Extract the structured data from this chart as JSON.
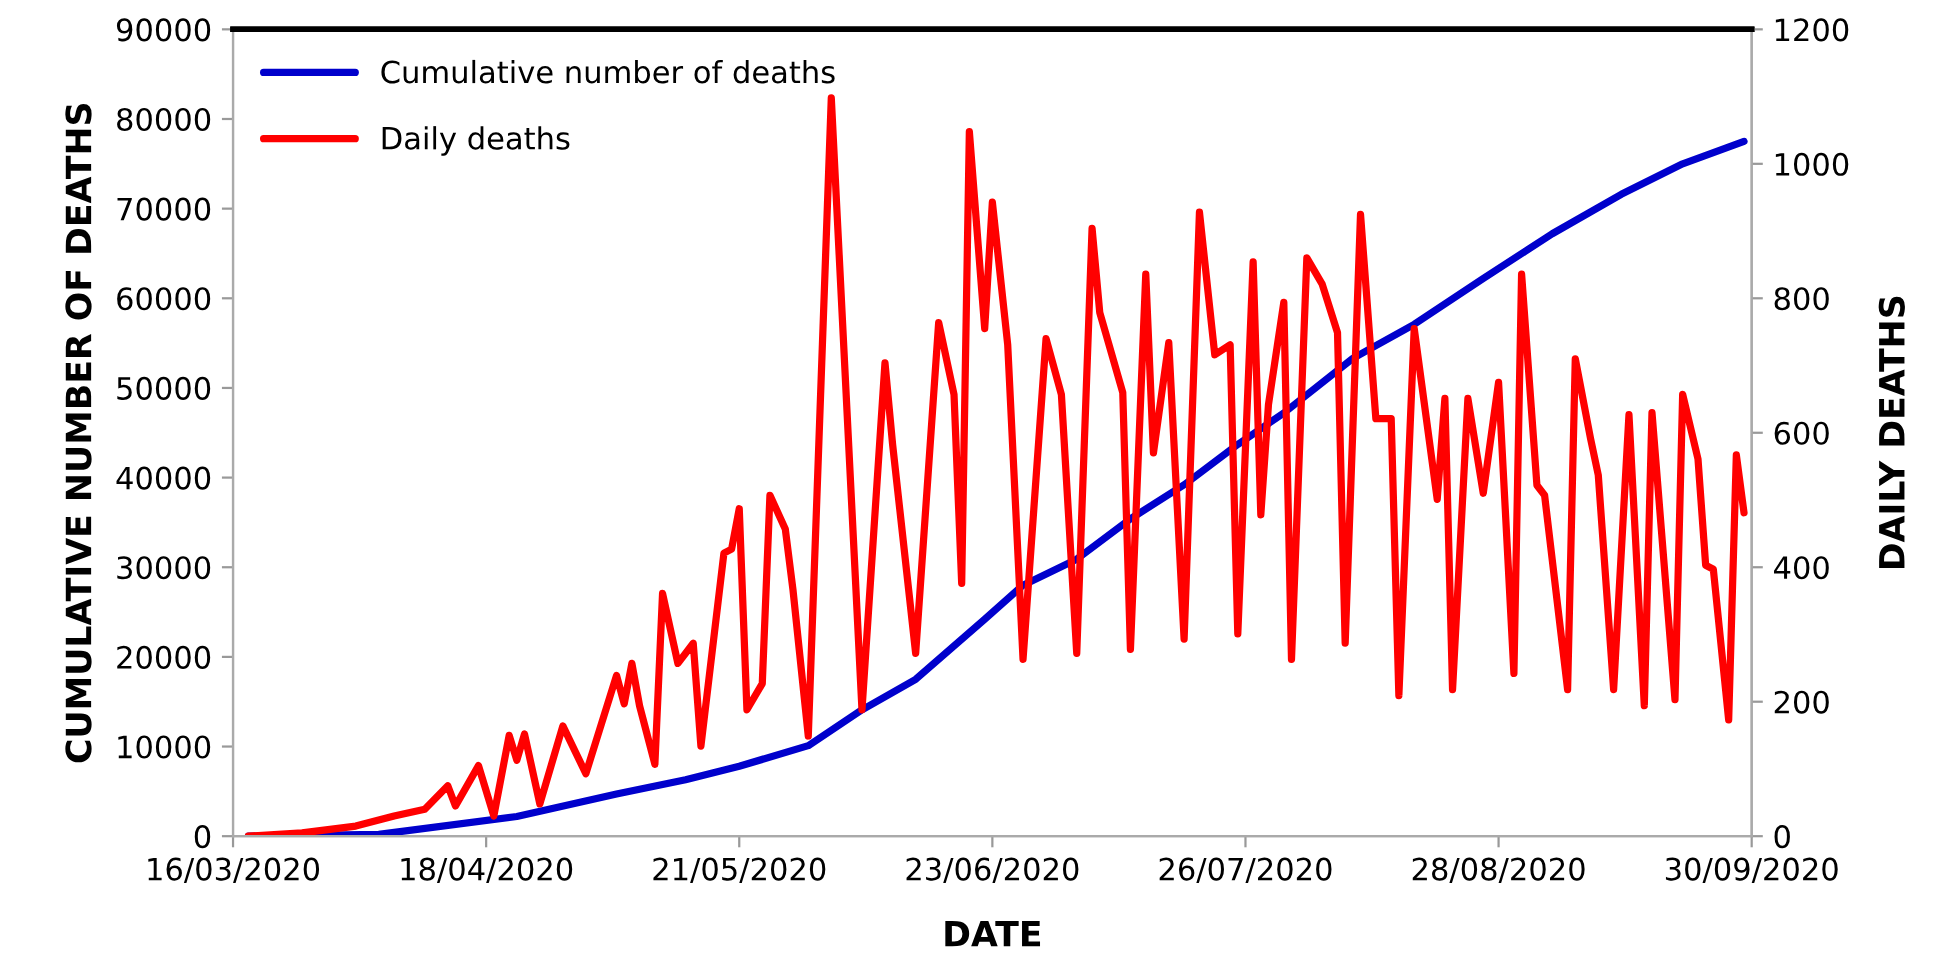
{
  "chart_data": {
    "type": "line",
    "xlabel": "DATE",
    "ylabel": "CUMULATIVE NUMBER OF DEATHS",
    "y2label": "DAILY DEATHS",
    "xlim": [
      "2020-03-16",
      "2020-09-30"
    ],
    "xticks": [
      {
        "value": "2020-03-16",
        "label": "16/03/2020"
      },
      {
        "value": "2020-04-18",
        "label": "18/04/2020"
      },
      {
        "value": "2020-05-21",
        "label": "21/05/2020"
      },
      {
        "value": "2020-06-23",
        "label": "23/06/2020"
      },
      {
        "value": "2020-07-26",
        "label": "26/07/2020"
      },
      {
        "value": "2020-08-28",
        "label": "28/08/2020"
      },
      {
        "value": "2020-09-30",
        "label": "30/09/2020"
      }
    ],
    "ylim": [
      0,
      90000
    ],
    "yticks": [
      0,
      10000,
      20000,
      30000,
      40000,
      50000,
      60000,
      70000,
      80000,
      90000
    ],
    "y2lim": [
      0,
      1200
    ],
    "y2ticks": [
      0,
      200,
      400,
      600,
      800,
      1000,
      1200
    ],
    "legend": "top left",
    "grid": false,
    "line_style": "solid",
    "marker": "none",
    "series": [
      {
        "name": "Cumulative number of deaths",
        "color": "#0000cc",
        "axis": "y",
        "x": [
          "2020-03-18",
          "2020-04-04",
          "2020-04-22",
          "2020-05-05",
          "2020-05-14",
          "2020-05-21",
          "2020-05-30",
          "2020-06-06",
          "2020-06-13",
          "2020-06-22",
          "2020-06-27",
          "2020-07-04",
          "2020-07-11",
          "2020-07-18",
          "2020-07-25",
          "2020-07-31",
          "2020-08-09",
          "2020-08-17",
          "2020-08-26",
          "2020-09-04",
          "2020-09-13",
          "2020-09-21",
          "2020-09-29"
        ],
        "values": [
          0,
          200,
          2200,
          4700,
          6300,
          7800,
          10100,
          14100,
          17500,
          24200,
          28000,
          30900,
          35400,
          39200,
          43700,
          47200,
          53300,
          57100,
          62200,
          67200,
          71600,
          75000,
          77500
        ]
      },
      {
        "name": "Daily deaths",
        "color": "#ff0000",
        "axis": "y2",
        "x": [
          "2020-03-18",
          "2020-03-25",
          "2020-04-01",
          "2020-04-06",
          "2020-04-10",
          "2020-04-13",
          "2020-04-14",
          "2020-04-17",
          "2020-04-19",
          "2020-04-21",
          "2020-04-22",
          "2020-04-23",
          "2020-04-25",
          "2020-04-28",
          "2020-05-01",
          "2020-05-05",
          "2020-05-06",
          "2020-05-07",
          "2020-05-08",
          "2020-05-10",
          "2020-05-11",
          "2020-05-13",
          "2020-05-15",
          "2020-05-16",
          "2020-05-19",
          "2020-05-20",
          "2020-05-21",
          "2020-05-22",
          "2020-05-24",
          "2020-05-25",
          "2020-05-27",
          "2020-05-28",
          "2020-05-30",
          "2020-06-02",
          "2020-06-06",
          "2020-06-09",
          "2020-06-10",
          "2020-06-13",
          "2020-06-16",
          "2020-06-18",
          "2020-06-19",
          "2020-06-20",
          "2020-06-22",
          "2020-06-23",
          "2020-06-25",
          "2020-06-27",
          "2020-06-30",
          "2020-07-02",
          "2020-07-04",
          "2020-07-06",
          "2020-07-07",
          "2020-07-10",
          "2020-07-11",
          "2020-07-13",
          "2020-07-14",
          "2020-07-16",
          "2020-07-18",
          "2020-07-20",
          "2020-07-22",
          "2020-07-24",
          "2020-07-25",
          "2020-07-27",
          "2020-07-28",
          "2020-07-29",
          "2020-07-31",
          "2020-08-01",
          "2020-08-03",
          "2020-08-05",
          "2020-08-07",
          "2020-08-08",
          "2020-08-10",
          "2020-08-12",
          "2020-08-14",
          "2020-08-15",
          "2020-08-17",
          "2020-08-20",
          "2020-08-21",
          "2020-08-22",
          "2020-08-24",
          "2020-08-26",
          "2020-08-28",
          "2020-08-30",
          "2020-08-31",
          "2020-09-02",
          "2020-09-03",
          "2020-09-06",
          "2020-09-07",
          "2020-09-09",
          "2020-09-10",
          "2020-09-12",
          "2020-09-14",
          "2020-09-16",
          "2020-09-17",
          "2020-09-20",
          "2020-09-21",
          "2020-09-23",
          "2020-09-24",
          "2020-09-25",
          "2020-09-27",
          "2020-09-28",
          "2020-09-29"
        ],
        "values": [
          0,
          5,
          15,
          30,
          40,
          75,
          45,
          105,
          30,
          150,
          113,
          152,
          48,
          164,
          93,
          239,
          197,
          257,
          194,
          107,
          361,
          257,
          287,
          134,
          421,
          427,
          487,
          188,
          227,
          507,
          457,
          367,
          149,
          1098,
          188,
          704,
          582,
          272,
          764,
          657,
          376,
          1048,
          755,
          943,
          731,
          263,
          740,
          657,
          272,
          904,
          779,
          660,
          278,
          836,
          570,
          734,
          293,
          928,
          716,
          731,
          301,
          854,
          478,
          642,
          794,
          263,
          860,
          821,
          749,
          287,
          925,
          621,
          621,
          209,
          755,
          501,
          651,
          218,
          651,
          510,
          675,
          242,
          836,
          522,
          507,
          218,
          710,
          591,
          537,
          218,
          627,
          194,
          630,
          203,
          657,
          561,
          403,
          397,
          173,
          567,
          481
        ]
      }
    ]
  }
}
